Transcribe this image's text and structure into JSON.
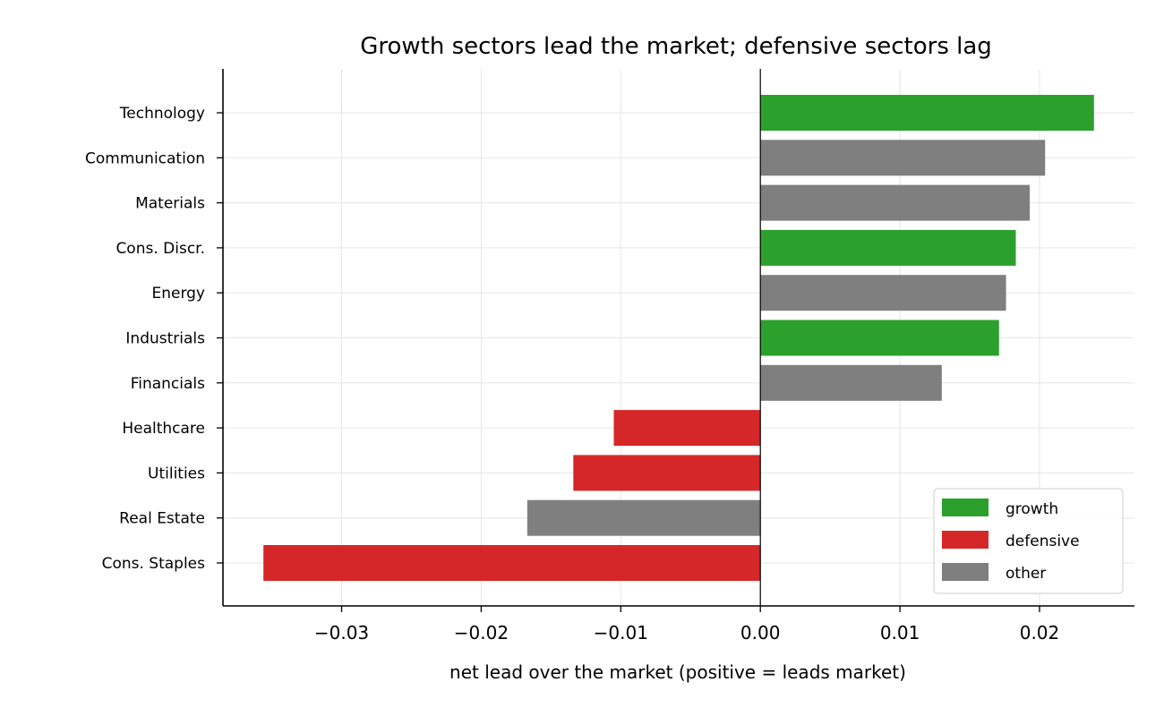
{
  "chart_data": {
    "type": "bar",
    "orientation": "horizontal",
    "title": "Growth sectors lead the market; defensive sectors lag",
    "xlabel": "net lead over the market  (positive = leads market)",
    "ylabel": "",
    "xlim": [
      -0.0385,
      0.0268
    ],
    "xticks": [
      -0.03,
      -0.02,
      -0.01,
      0.0,
      0.01,
      0.02
    ],
    "xtick_labels": [
      "−0.03",
      "−0.02",
      "−0.01",
      "0.00",
      "0.01",
      "0.02"
    ],
    "grid": true,
    "legend_position": "bottom-right",
    "legend": [
      {
        "group": "growth",
        "label": "growth",
        "color": "#2ca02c"
      },
      {
        "group": "defensive",
        "label": "defensive",
        "color": "#d62728"
      },
      {
        "group": "other",
        "label": "other",
        "color": "#7f7f7f"
      }
    ],
    "categories": [
      "Technology",
      "Communication",
      "Materials",
      "Cons. Discr.",
      "Energy",
      "Industrials",
      "Financials",
      "Healthcare",
      "Utilities",
      "Real Estate",
      "Cons. Staples"
    ],
    "values": [
      0.0239,
      0.0204,
      0.0193,
      0.0183,
      0.0176,
      0.0171,
      0.013,
      -0.0105,
      -0.0134,
      -0.0167,
      -0.0356
    ],
    "groups": [
      "growth",
      "other",
      "other",
      "growth",
      "other",
      "growth",
      "other",
      "defensive",
      "defensive",
      "other",
      "defensive"
    ]
  }
}
